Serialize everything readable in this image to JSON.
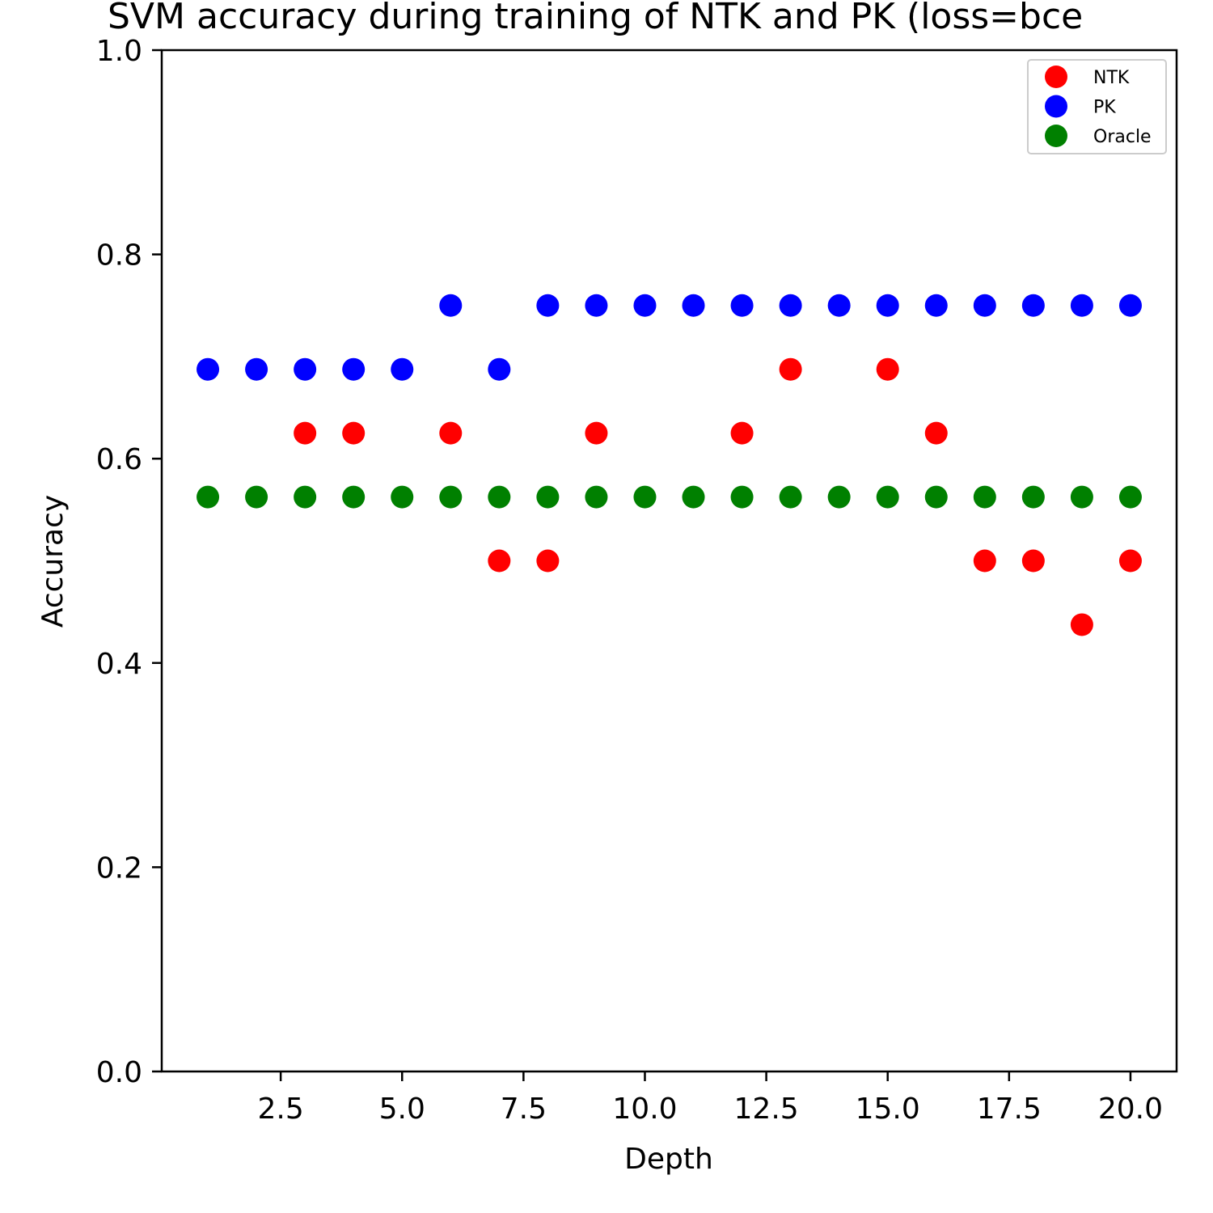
{
  "chart_data": {
    "type": "scatter",
    "title": "SVM accuracy during training of NTK and PK (loss=bce",
    "xlabel": "Depth",
    "ylabel": "Accuracy",
    "xlim": [
      0.05,
      20.95
    ],
    "ylim": [
      0.0,
      1.0
    ],
    "xticks": [
      "2.5",
      "5.0",
      "7.5",
      "10.0",
      "12.5",
      "15.0",
      "17.5",
      "20.0"
    ],
    "yticks": [
      "0.0",
      "0.2",
      "0.4",
      "0.6",
      "0.8",
      "1.0"
    ],
    "grid": false,
    "legend_position": "top-right",
    "x": [
      1,
      2,
      3,
      4,
      5,
      6,
      7,
      8,
      9,
      10,
      11,
      12,
      13,
      14,
      15,
      16,
      17,
      18,
      19,
      20
    ],
    "series": [
      {
        "name": "NTK",
        "color": "#ff0000",
        "points": [
          [
            3,
            0.625
          ],
          [
            4,
            0.625
          ],
          [
            6,
            0.625
          ],
          [
            7,
            0.5
          ],
          [
            8,
            0.5
          ],
          [
            9,
            0.625
          ],
          [
            12,
            0.625
          ],
          [
            13,
            0.6875
          ],
          [
            15,
            0.6875
          ],
          [
            16,
            0.625
          ],
          [
            17,
            0.5
          ],
          [
            18,
            0.5
          ],
          [
            19,
            0.4375
          ],
          [
            20,
            0.5
          ]
        ]
      },
      {
        "name": "PK",
        "color": "#0000ff",
        "points": [
          [
            1,
            0.6875
          ],
          [
            2,
            0.6875
          ],
          [
            3,
            0.6875
          ],
          [
            4,
            0.6875
          ],
          [
            5,
            0.6875
          ],
          [
            6,
            0.75
          ],
          [
            7,
            0.6875
          ],
          [
            8,
            0.75
          ],
          [
            9,
            0.75
          ],
          [
            10,
            0.75
          ],
          [
            11,
            0.75
          ],
          [
            12,
            0.75
          ],
          [
            13,
            0.75
          ],
          [
            14,
            0.75
          ],
          [
            15,
            0.75
          ],
          [
            16,
            0.75
          ],
          [
            17,
            0.75
          ],
          [
            18,
            0.75
          ],
          [
            19,
            0.75
          ],
          [
            20,
            0.75
          ]
        ]
      },
      {
        "name": "Oracle",
        "color": "#008000",
        "points": [
          [
            1,
            0.5625
          ],
          [
            2,
            0.5625
          ],
          [
            3,
            0.5625
          ],
          [
            4,
            0.5625
          ],
          [
            5,
            0.5625
          ],
          [
            6,
            0.5625
          ],
          [
            7,
            0.5625
          ],
          [
            8,
            0.5625
          ],
          [
            9,
            0.5625
          ],
          [
            10,
            0.5625
          ],
          [
            11,
            0.5625
          ],
          [
            12,
            0.5625
          ],
          [
            13,
            0.5625
          ],
          [
            14,
            0.5625
          ],
          [
            15,
            0.5625
          ],
          [
            16,
            0.5625
          ],
          [
            17,
            0.5625
          ],
          [
            18,
            0.5625
          ],
          [
            19,
            0.5625
          ],
          [
            20,
            0.5625
          ]
        ]
      }
    ]
  }
}
